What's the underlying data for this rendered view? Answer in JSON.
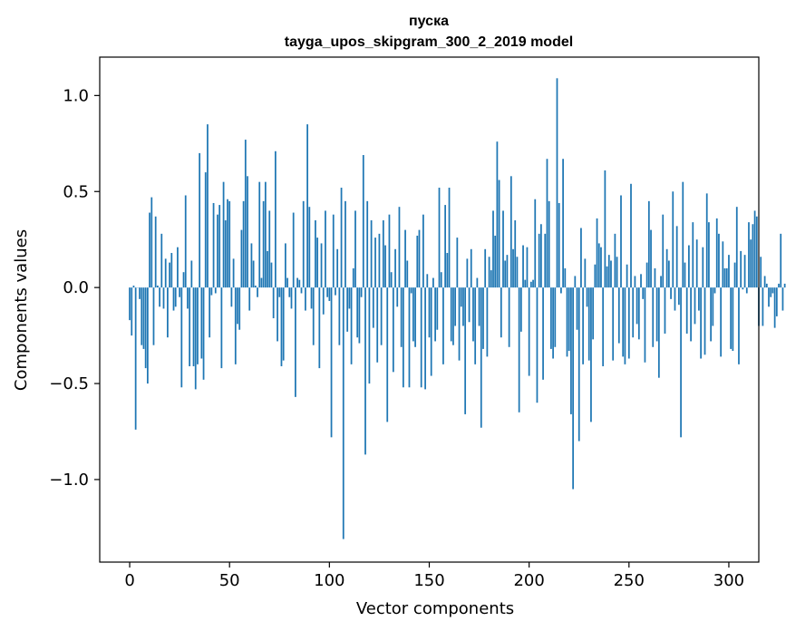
{
  "chart_data": {
    "type": "bar",
    "title_line1": "пуска",
    "title_line2": "tayga_upos_skipgram_300_2_2019 model",
    "xlabel": "Vector components",
    "ylabel": "Components values",
    "xlim": [
      -15,
      315
    ],
    "ylim": [
      -1.43,
      1.2
    ],
    "xticks": [
      0,
      50,
      100,
      150,
      200,
      250,
      300
    ],
    "xtick_labels": [
      "0",
      "50",
      "100",
      "150",
      "200",
      "250",
      "300"
    ],
    "yticks": [
      -1.0,
      -0.5,
      0.0,
      0.5,
      1.0
    ],
    "ytick_labels": [
      "−1.0",
      "−0.5",
      "0.0",
      "0.5",
      "1.0"
    ],
    "bar_color": "#1f77b4",
    "values": [
      -0.17,
      -0.25,
      0.01,
      -0.74,
      0.0,
      -0.06,
      -0.3,
      -0.32,
      -0.42,
      -0.5,
      0.39,
      0.47,
      -0.3,
      0.37,
      0.01,
      -0.1,
      0.28,
      -0.11,
      0.15,
      -0.26,
      0.13,
      0.18,
      -0.12,
      -0.1,
      0.21,
      -0.05,
      -0.52,
      0.08,
      0.48,
      -0.11,
      -0.41,
      0.14,
      -0.41,
      -0.53,
      -0.4,
      0.7,
      -0.37,
      -0.48,
      0.6,
      0.85,
      -0.26,
      -0.04,
      0.44,
      -0.03,
      0.38,
      0.43,
      -0.42,
      0.55,
      0.35,
      0.46,
      0.45,
      -0.1,
      0.15,
      -0.4,
      -0.19,
      -0.22,
      0.3,
      0.45,
      0.77,
      0.58,
      -0.12,
      0.23,
      0.14,
      0.01,
      -0.05,
      0.55,
      0.05,
      0.45,
      0.55,
      0.19,
      0.4,
      0.13,
      -0.16,
      0.71,
      -0.28,
      -0.05,
      -0.41,
      -0.38,
      0.23,
      0.05,
      -0.05,
      -0.11,
      0.39,
      -0.57,
      0.05,
      0.04,
      -0.03,
      0.45,
      -0.12,
      0.85,
      0.42,
      -0.11,
      -0.3,
      0.35,
      0.26,
      -0.42,
      0.23,
      -0.14,
      0.4,
      -0.05,
      -0.07,
      -0.78,
      0.38,
      -0.04,
      0.2,
      -0.3,
      0.52,
      -1.31,
      0.45,
      -0.23,
      -0.11,
      -0.4,
      0.1,
      0.4,
      -0.26,
      -0.29,
      -0.05,
      0.69,
      -0.87,
      0.45,
      -0.5,
      0.35,
      -0.21,
      0.26,
      -0.39,
      0.28,
      -0.3,
      0.35,
      0.22,
      -0.7,
      0.38,
      0.08,
      -0.44,
      0.2,
      -0.1,
      0.42,
      -0.31,
      -0.52,
      0.3,
      0.14,
      -0.52,
      -0.03,
      -0.28,
      -0.31,
      0.27,
      0.3,
      -0.52,
      0.38,
      -0.53,
      0.07,
      -0.26,
      -0.46,
      0.05,
      -0.28,
      -0.22,
      0.52,
      0.08,
      -0.4,
      0.43,
      0.18,
      0.52,
      -0.28,
      -0.3,
      -0.2,
      0.26,
      -0.38,
      -0.1,
      -0.2,
      -0.66,
      0.15,
      -0.18,
      0.2,
      -0.28,
      -0.4,
      0.05,
      -0.2,
      -0.73,
      -0.32,
      0.2,
      -0.36,
      0.16,
      0.09,
      0.4,
      0.27,
      0.76,
      0.56,
      -0.26,
      0.4,
      0.14,
      0.17,
      -0.31,
      0.58,
      0.2,
      0.35,
      0.16,
      -0.65,
      -0.23,
      0.22,
      0.04,
      0.21,
      -0.46,
      0.03,
      0.04,
      0.46,
      -0.6,
      0.28,
      0.33,
      -0.48,
      0.28,
      0.67,
      0.45,
      -0.32,
      -0.37,
      -0.31,
      1.09,
      0.44,
      -0.03,
      0.67,
      0.1,
      -0.36,
      -0.33,
      -0.66,
      -1.05,
      0.06,
      -0.22,
      -0.8,
      0.31,
      -0.4,
      0.15,
      -0.1,
      -0.38,
      -0.7,
      -0.27,
      0.12,
      0.36,
      0.23,
      0.21,
      -0.41,
      0.61,
      0.11,
      0.17,
      0.14,
      -0.38,
      0.28,
      0.16,
      -0.29,
      0.48,
      -0.36,
      -0.4,
      0.12,
      -0.37,
      0.54,
      -0.26,
      0.06,
      -0.19,
      -0.27,
      0.07,
      -0.06,
      -0.39,
      0.13,
      0.45,
      0.3,
      -0.31,
      0.1,
      -0.28,
      -0.47,
      0.06,
      0.38,
      -0.24,
      0.2,
      0.14,
      -0.06,
      0.5,
      -0.12,
      0.32,
      -0.09,
      -0.78,
      0.55,
      0.13,
      -0.24,
      0.22,
      -0.28,
      0.34,
      -0.19,
      0.25,
      -0.12,
      -0.37,
      0.21,
      -0.35,
      0.49,
      0.34,
      -0.28,
      -0.2,
      -0.03,
      0.36,
      0.28,
      -0.36,
      0.24,
      0.1,
      0.1,
      0.17,
      -0.32,
      -0.33,
      0.13,
      0.42,
      -0.4,
      0.19,
      -0.01,
      0.17,
      -0.03,
      0.34,
      0.25,
      0.33,
      0.4,
      0.37,
      -0.2,
      0.16,
      -0.2,
      0.06,
      0.02,
      -0.1,
      -0.05,
      -0.03,
      -0.21,
      -0.15,
      0.02,
      0.28,
      -0.12,
      0.02
    ]
  }
}
